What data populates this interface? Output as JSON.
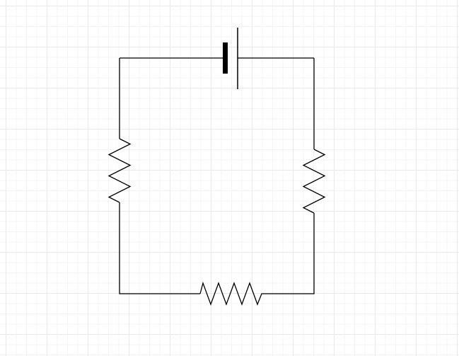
{
  "diagram": {
    "type": "circuit-schematic",
    "grid": true,
    "components": [
      {
        "kind": "battery",
        "position": "top",
        "orientation": "horizontal"
      },
      {
        "kind": "resistor",
        "position": "left",
        "orientation": "vertical"
      },
      {
        "kind": "resistor",
        "position": "right",
        "orientation": "vertical"
      },
      {
        "kind": "resistor",
        "position": "bottom",
        "orientation": "horizontal"
      }
    ],
    "connection": "series loop",
    "colors": {
      "wire": "#000000",
      "grid_major": "#e9e9e9",
      "grid_minor": "#f4f4f4",
      "background": "#ffffff"
    }
  }
}
